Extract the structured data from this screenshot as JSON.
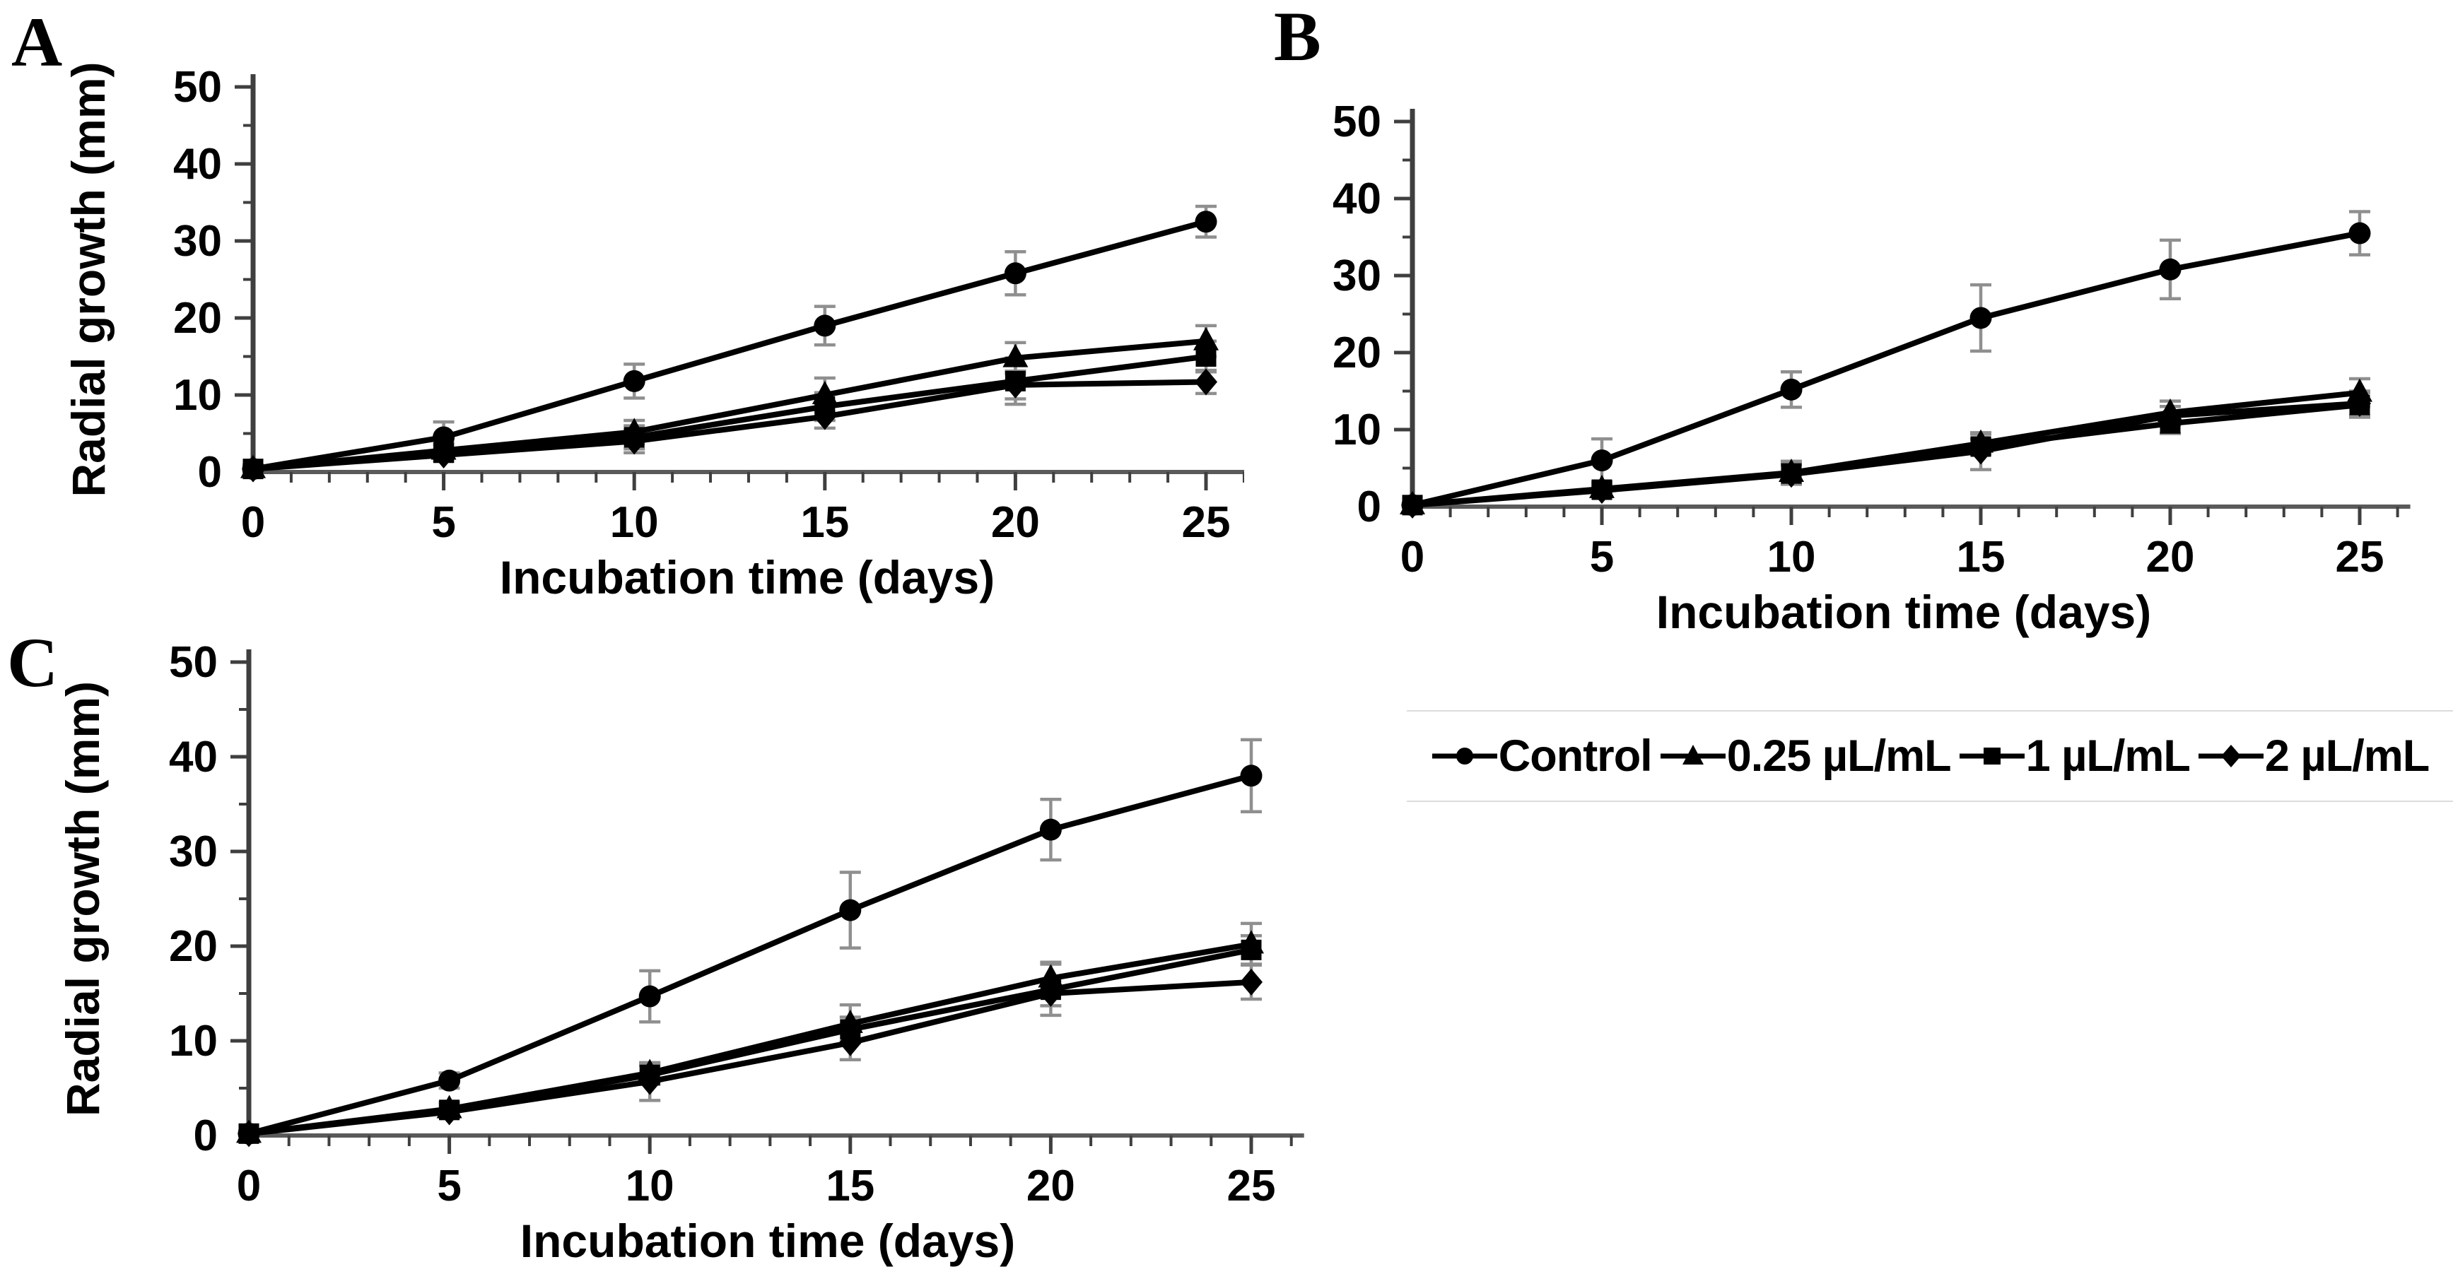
{
  "figure_type": "multi-panel line chart figure",
  "colors": {
    "series_line": "#000000",
    "marker_fill": "#000000",
    "error_bar": "#8f8f8f",
    "y_axis": "#3f3f3f",
    "x_axis": "#5a5a5a",
    "tick_label": "#000000",
    "legend_border": "#dcdcdc",
    "background": "#ffffff"
  },
  "legend": {
    "items": [
      {
        "label": "Control",
        "marker": "circle"
      },
      {
        "label": "0.25 µL/mL",
        "marker": "triangle"
      },
      {
        "label": "1 µL/mL",
        "marker": "square"
      },
      {
        "label": "2 µL/mL",
        "marker": "diamond"
      }
    ]
  },
  "chart_data": [
    {
      "id": "A",
      "panel_label": "A",
      "type": "line",
      "xlabel": "Incubation time (days)",
      "ylabel": "Radial growth (mm)",
      "x": [
        0,
        5,
        10,
        15,
        20,
        25
      ],
      "xticks": [
        0,
        5,
        10,
        15,
        20,
        25
      ],
      "yticks": [
        0,
        10,
        20,
        30,
        40,
        50
      ],
      "xlim": [
        0,
        26
      ],
      "ylim": [
        0,
        50
      ],
      "minor_x_step": 1,
      "minor_y_step": 5,
      "grid": false,
      "series": [
        {
          "name": "Control",
          "marker": "circle",
          "values": [
            0.4,
            4.5,
            11.8,
            19.0,
            25.8,
            32.5
          ],
          "errors": [
            0.5,
            2.0,
            2.2,
            2.5,
            2.8,
            2.0
          ]
        },
        {
          "name": "0.25 µL/mL",
          "marker": "triangle",
          "values": [
            0.4,
            2.8,
            5.2,
            10.0,
            14.8,
            17.0
          ],
          "errors": [
            0.3,
            1.0,
            1.5,
            2.2,
            2.0,
            2.0
          ]
        },
        {
          "name": "1 µL/mL",
          "marker": "square",
          "values": [
            0.4,
            2.5,
            4.5,
            8.5,
            11.8,
            15.0
          ],
          "errors": [
            0.3,
            1.0,
            1.5,
            1.8,
            3.0,
            2.0
          ]
        },
        {
          "name": "2 µL/mL",
          "marker": "diamond",
          "values": [
            0.4,
            2.2,
            4.0,
            7.2,
            11.3,
            11.7
          ],
          "errors": [
            0.3,
            0.8,
            1.5,
            1.5,
            1.8,
            1.5
          ]
        }
      ]
    },
    {
      "id": "B",
      "panel_label": "B",
      "type": "line",
      "xlabel": "Incubation time (days)",
      "ylabel": "",
      "x": [
        0,
        5,
        10,
        15,
        20,
        25
      ],
      "xticks": [
        0,
        5,
        10,
        15,
        20,
        25
      ],
      "yticks": [
        0,
        10,
        20,
        30,
        40,
        50
      ],
      "xlim": [
        0,
        26
      ],
      "ylim": [
        0,
        50
      ],
      "minor_x_step": 1,
      "minor_y_step": 5,
      "grid": false,
      "series": [
        {
          "name": "Control",
          "marker": "circle",
          "values": [
            0.2,
            6.0,
            15.2,
            24.5,
            30.8,
            35.5
          ],
          "errors": [
            0.3,
            2.8,
            2.3,
            4.3,
            3.8,
            2.8
          ]
        },
        {
          "name": "0.25 µL/mL",
          "marker": "triangle",
          "values": [
            0.2,
            2.3,
            4.4,
            8.2,
            12.2,
            14.8
          ],
          "errors": [
            0.2,
            0.6,
            1.5,
            1.2,
            1.5,
            1.8
          ]
        },
        {
          "name": "1 µL/mL",
          "marker": "square",
          "values": [
            0.2,
            2.2,
            4.3,
            7.8,
            10.8,
            13.2
          ],
          "errors": [
            0.2,
            0.6,
            1.2,
            1.0,
            1.3,
            1.6
          ]
        },
        {
          "name": "2 µL/mL",
          "marker": "diamond",
          "values": [
            0.2,
            2.1,
            4.2,
            7.2,
            11.8,
            13.4
          ],
          "errors": [
            0.2,
            0.6,
            1.2,
            2.4,
            1.2,
            1.6
          ]
        }
      ]
    },
    {
      "id": "C",
      "panel_label": "C",
      "type": "line",
      "xlabel": "Incubation time (days)",
      "ylabel": "Radial growth (mm)",
      "x": [
        0,
        5,
        10,
        15,
        20,
        25
      ],
      "xticks": [
        0,
        5,
        10,
        15,
        20,
        25
      ],
      "yticks": [
        0,
        10,
        20,
        30,
        40,
        50
      ],
      "xlim": [
        0,
        26
      ],
      "ylim": [
        0,
        50
      ],
      "minor_x_step": 1,
      "minor_y_step": 5,
      "grid": false,
      "series": [
        {
          "name": "Control",
          "marker": "circle",
          "values": [
            0.2,
            5.8,
            14.7,
            23.8,
            32.3,
            38.0
          ],
          "errors": [
            0.3,
            0.8,
            2.7,
            4.0,
            3.2,
            3.8
          ]
        },
        {
          "name": "0.25 µL/mL",
          "marker": "triangle",
          "values": [
            0.2,
            2.8,
            6.6,
            11.8,
            16.6,
            20.2
          ],
          "errors": [
            0.2,
            0.6,
            1.0,
            2.0,
            1.7,
            2.2
          ]
        },
        {
          "name": "1 µL/mL",
          "marker": "square",
          "values": [
            0.2,
            2.7,
            6.4,
            11.2,
            15.4,
            19.6
          ],
          "errors": [
            0.2,
            0.8,
            1.0,
            1.3,
            2.7,
            1.5
          ]
        },
        {
          "name": "2 µL/mL",
          "marker": "diamond",
          "values": [
            0.2,
            2.5,
            5.7,
            9.8,
            15.0,
            16.2
          ],
          "errors": [
            0.2,
            0.6,
            2.0,
            1.8,
            1.3,
            1.8
          ]
        }
      ]
    }
  ]
}
